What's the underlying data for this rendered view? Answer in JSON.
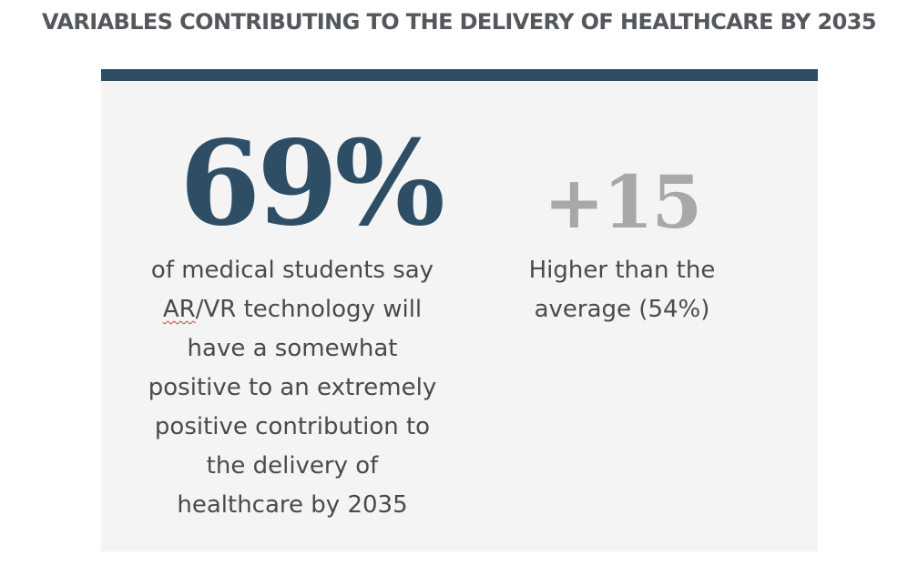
{
  "header": {
    "title": "VARIABLES CONTRIBUTING TO THE DELIVERY OF HEALTHCARE BY 2035"
  },
  "card": {
    "primary": {
      "value": "69%",
      "description_lines": [
        "of medical students say",
        "AR/VR technology will",
        "have a somewhat",
        "positive to an extremely",
        "positive contribution to",
        "the delivery of",
        "healthcare by 2035"
      ],
      "flagged_word": "AR",
      "flagged_rest": "/VR technology will"
    },
    "secondary": {
      "value": "+15",
      "description_lines": [
        "Higher than the",
        "average (54%)"
      ]
    }
  },
  "colors": {
    "accent": "#2e4e66",
    "title_gray": "#54575b",
    "secondary_gray": "#a8a8a8",
    "card_bg": "#f4f4f4",
    "body_text": "#4a4a4a"
  }
}
